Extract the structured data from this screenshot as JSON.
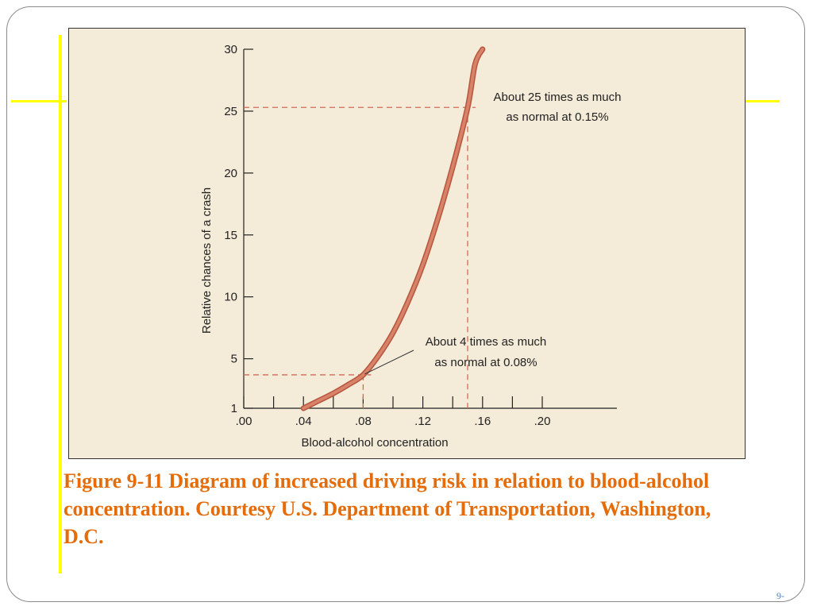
{
  "slide": {
    "caption": "Figure 9-11  Diagram of increased driving risk in relation to blood-alcohol concentration. Courtesy U.S. Department of Transportation, Washington, D.C.",
    "number": "9-"
  },
  "colors": {
    "background": "#f4ebd8",
    "curve": "#d9826a",
    "curve_edge": "#b5553c",
    "reference_line": "#d46a56",
    "axis": "#222222",
    "caption": "#e46c0a",
    "accent": "#ffff00"
  },
  "chart_data": {
    "type": "line",
    "xlabel": "Blood-alcohol concentration",
    "ylabel": "Relative chances of a crash",
    "xlim": [
      0.0,
      0.25
    ],
    "ylim": [
      1,
      30
    ],
    "x_ticks": [
      {
        "value": 0.0,
        "label": ".00"
      },
      {
        "value": 0.02,
        "label": ""
      },
      {
        "value": 0.04,
        "label": ".04"
      },
      {
        "value": 0.06,
        "label": ""
      },
      {
        "value": 0.08,
        "label": ".08"
      },
      {
        "value": 0.1,
        "label": ""
      },
      {
        "value": 0.12,
        "label": ".12"
      },
      {
        "value": 0.14,
        "label": ""
      },
      {
        "value": 0.16,
        "label": ".16"
      },
      {
        "value": 0.18,
        "label": ""
      },
      {
        "value": 0.2,
        "label": ".20"
      }
    ],
    "y_ticks": [
      {
        "value": 1,
        "label": "1"
      },
      {
        "value": 5,
        "label": "5"
      },
      {
        "value": 10,
        "label": "10"
      },
      {
        "value": 15,
        "label": "15"
      },
      {
        "value": 20,
        "label": "20"
      },
      {
        "value": 25,
        "label": "25"
      },
      {
        "value": 30,
        "label": "30"
      }
    ],
    "series": [
      {
        "x": [
          0.04,
          0.05,
          0.06,
          0.07,
          0.08,
          0.09,
          0.1,
          0.11,
          0.12,
          0.13,
          0.14,
          0.15,
          0.155,
          0.16
        ],
        "y": [
          1,
          1.6,
          2.2,
          2.9,
          3.7,
          5.2,
          7.1,
          9.6,
          12.6,
          16.3,
          20.5,
          25.3,
          28.8,
          30
        ]
      }
    ],
    "reference_points": [
      {
        "x": 0.08,
        "y": 3.7
      },
      {
        "x": 0.15,
        "y": 25.3
      }
    ],
    "annotations": [
      {
        "line1": "About 4 times as much",
        "line2": "as normal at 0.08%"
      },
      {
        "line1": "About 25 times as much",
        "line2": "as normal at 0.15%"
      }
    ]
  }
}
